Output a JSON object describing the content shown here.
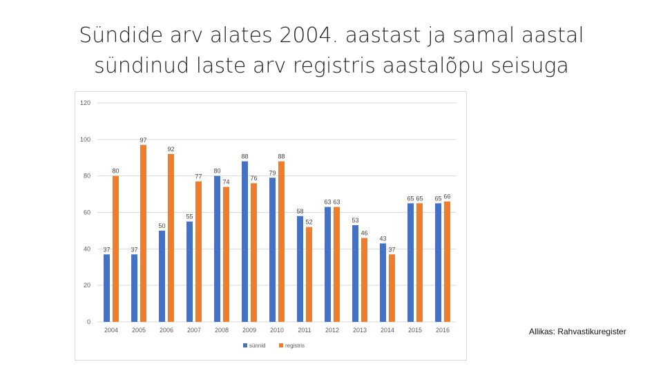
{
  "slide": {
    "title_line1": "Sündide arv alates 2004. aastast ja samal aastal",
    "title_line2": "sündinud laste arv registris aastalõpu seisuga",
    "source": "Allikas: Rahvastikuregister"
  },
  "chart_data": {
    "type": "bar",
    "categories": [
      "2004",
      "2005",
      "2006",
      "2007",
      "2008",
      "2009",
      "2010",
      "2011",
      "2012",
      "2013",
      "2014",
      "2015",
      "2016"
    ],
    "series": [
      {
        "name": "sünnid",
        "color": "#4472C4",
        "values": [
          37,
          37,
          50,
          55,
          80,
          88,
          79,
          58,
          63,
          53,
          43,
          65,
          65
        ]
      },
      {
        "name": "registris",
        "color": "#ED7D31",
        "values": [
          80,
          97,
          92,
          77,
          74,
          76,
          88,
          52,
          63,
          46,
          37,
          65,
          66
        ]
      }
    ],
    "ylim": [
      0,
      120
    ],
    "yticks": [
      0,
      20,
      40,
      60,
      80,
      100,
      120
    ],
    "grid": true,
    "legend_position": "bottom",
    "data_labels": true
  }
}
